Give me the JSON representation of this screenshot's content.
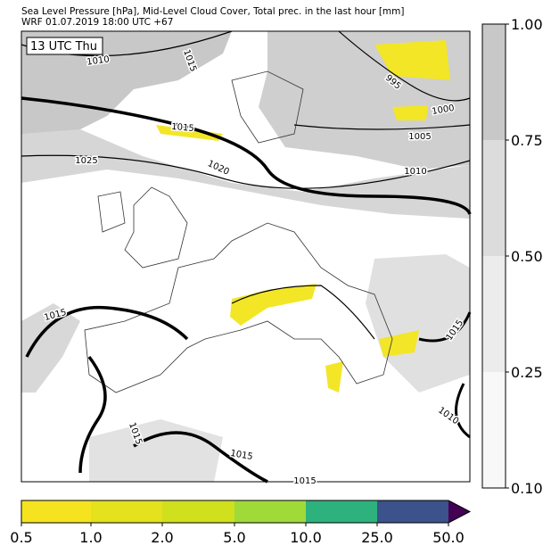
{
  "header": {
    "title": "Sea Level Pressure [hPa], Mid-Level Cloud Cover, Total prec. in the last hour [mm]",
    "subtitle": "WRF 01.07.2019 18:00 UTC +67"
  },
  "map": {
    "time_label": "13 UTC Thu",
    "isobar_labels": [
      "1010",
      "1015",
      "1015",
      "1025",
      "1020",
      "995",
      "1000",
      "1005",
      "1010",
      "1015",
      "1015",
      "1010",
      "1015",
      "1015",
      "1015"
    ]
  },
  "cloud_colorbar": {
    "ticks": [
      "1.00",
      "0.75",
      "0.50",
      "0.25",
      "0.10"
    ]
  },
  "precip_colorbar": {
    "ticks": [
      "0.5",
      "1.0",
      "2.0",
      "5.0",
      "10.0",
      "25.0",
      "50.0"
    ]
  }
}
